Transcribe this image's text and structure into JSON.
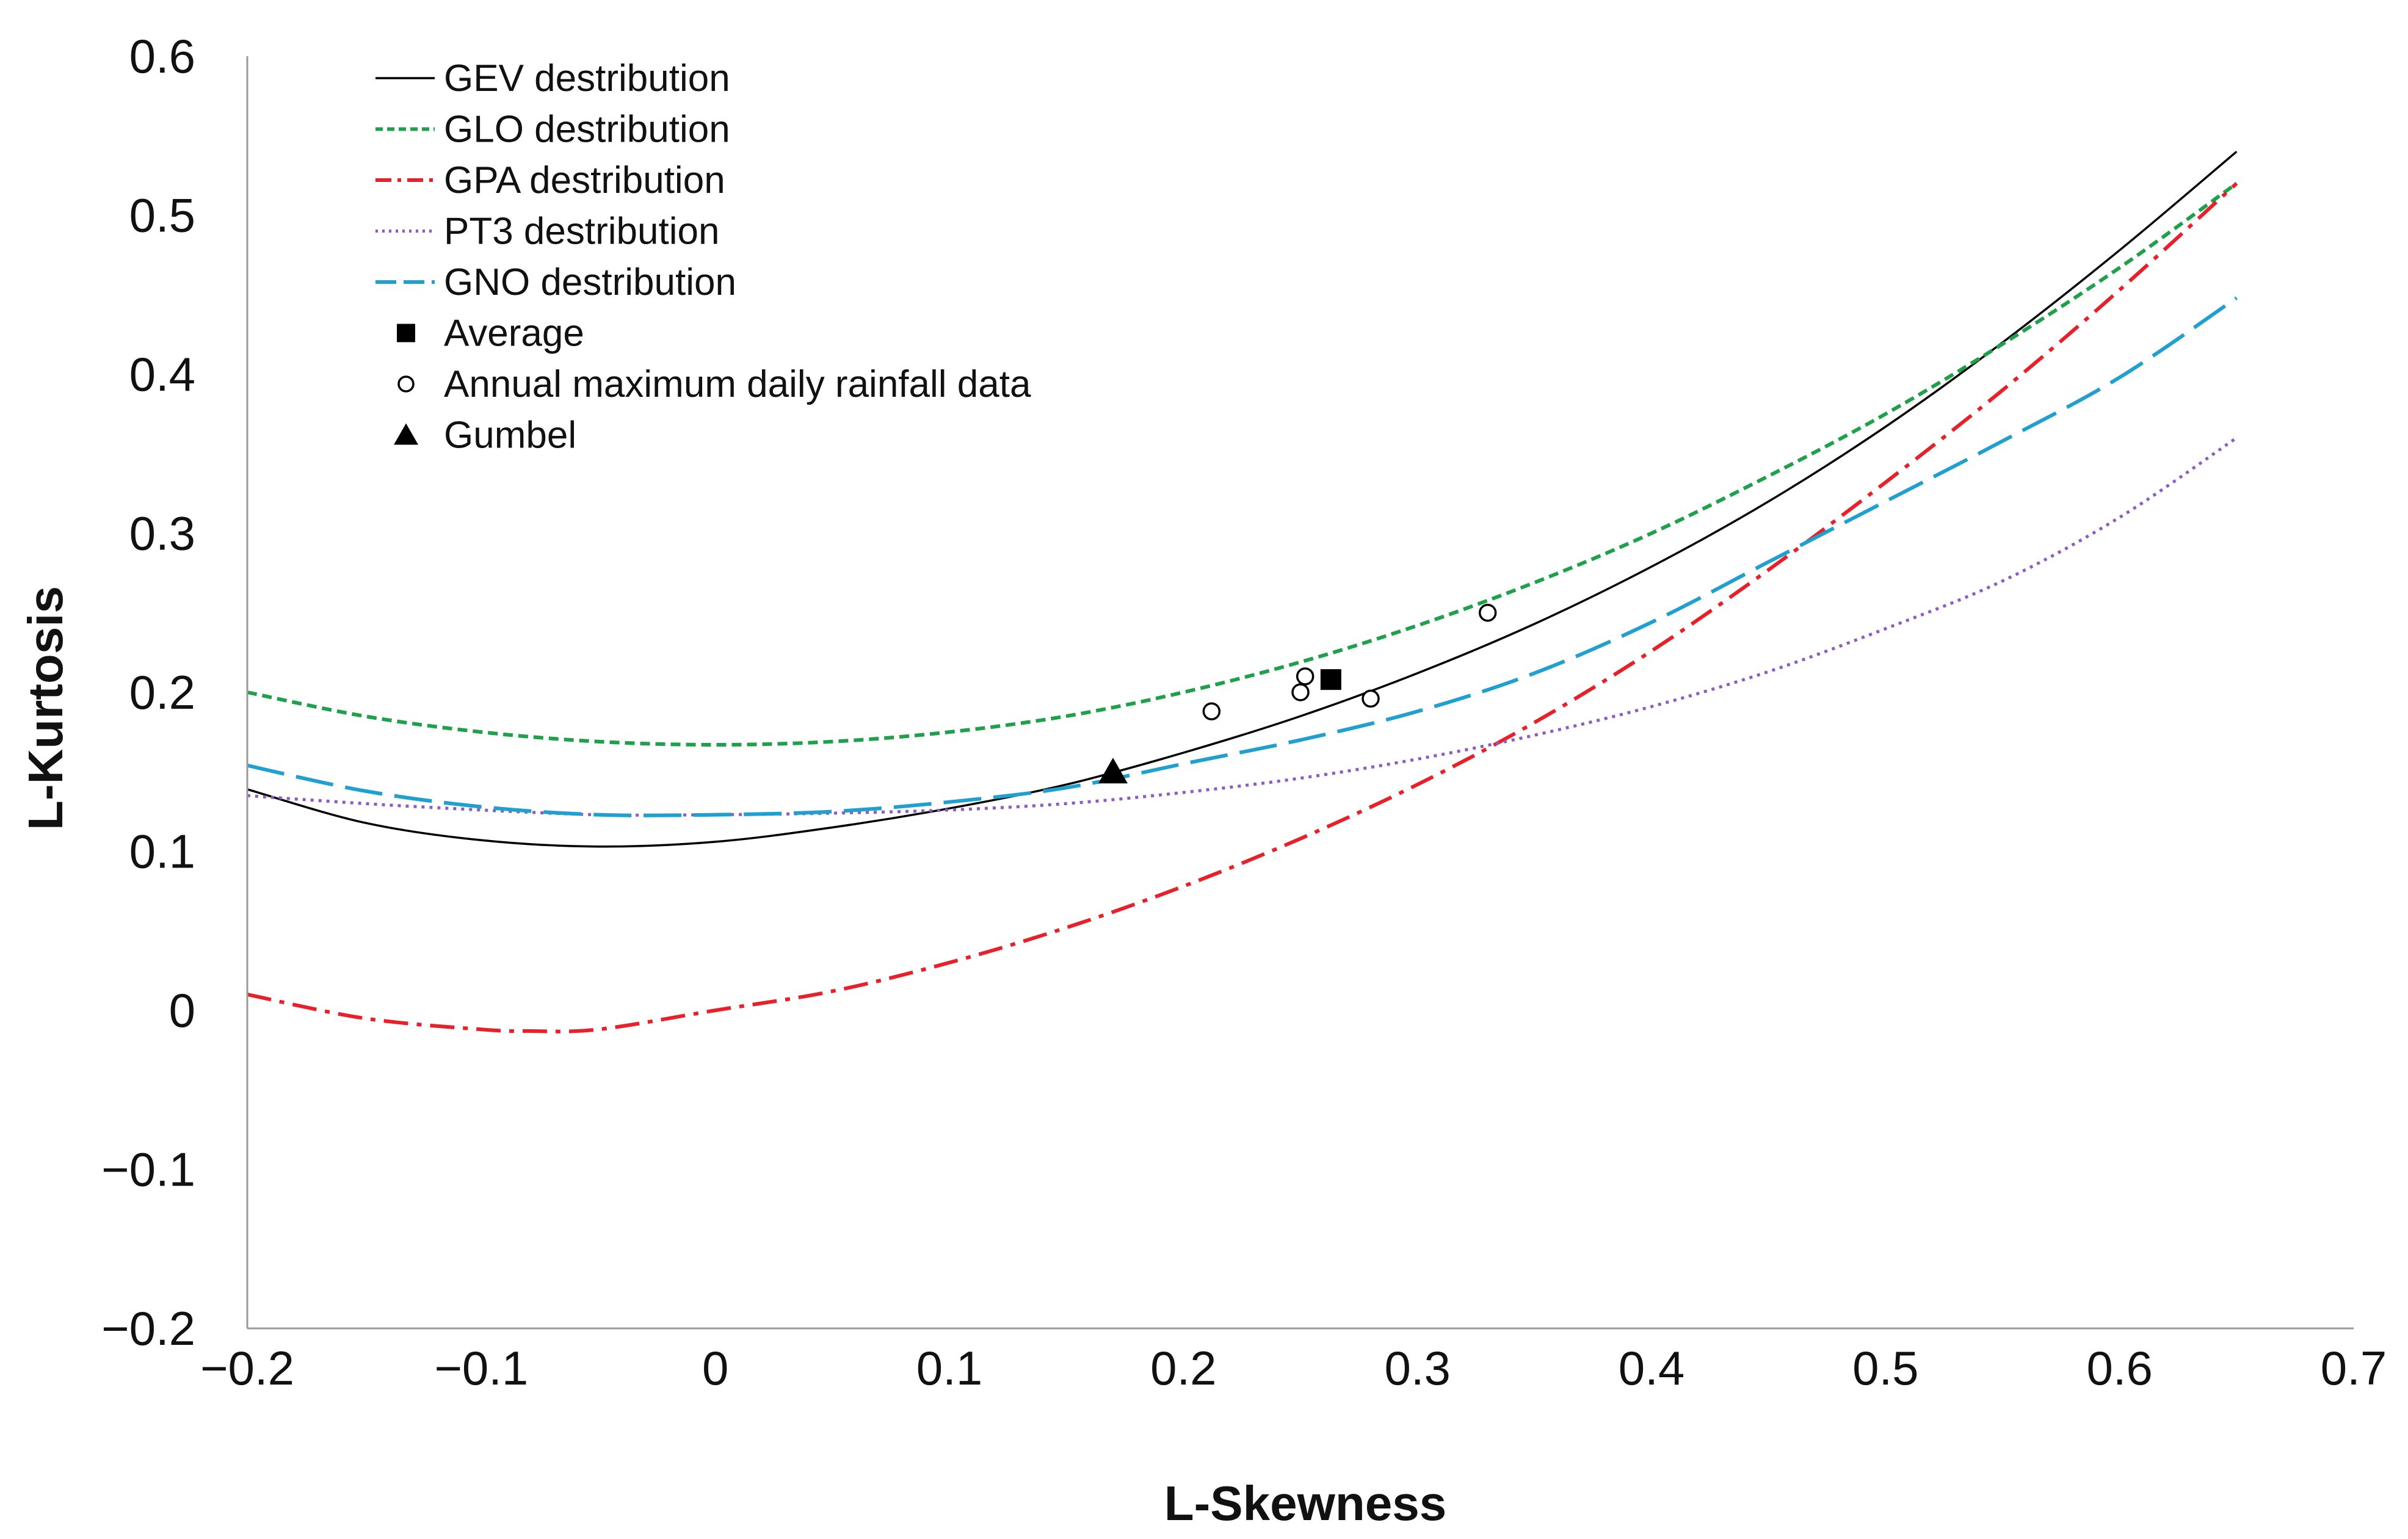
{
  "chart_data": {
    "type": "line",
    "title": "",
    "xlabel": "L-Skewness",
    "ylabel": "L-Kurtosis",
    "xlim": [
      -0.2,
      0.7
    ],
    "ylim": [
      -0.2,
      0.6
    ],
    "grid": false,
    "legend_position": "top-left",
    "x_ticks": [
      -0.2,
      -0.1,
      0,
      0.1,
      0.2,
      0.3,
      0.4,
      0.5,
      0.6,
      0.7
    ],
    "x_tick_labels": [
      "−0.2",
      "−0.1",
      "0",
      "0.1",
      "0.2",
      "0.3",
      "0.4",
      "0.5",
      "0.6",
      "0.7"
    ],
    "y_ticks": [
      0.6,
      0.5,
      0.4,
      0.3,
      0.2,
      0.1,
      0,
      -0.1,
      -0.2
    ],
    "y_tick_labels": [
      "0.6",
      "0.5",
      "0.4",
      "0.3",
      "0.2",
      "0.1",
      "0",
      "−0.1",
      "−0.2"
    ],
    "series": [
      {
        "name": "GEV destribution",
        "color": "#000000",
        "dash": "solid",
        "x": [
          -0.2,
          -0.15,
          -0.1,
          -0.05,
          0,
          0.05,
          0.1,
          0.15,
          0.2,
          0.25,
          0.3,
          0.35,
          0.4,
          0.45,
          0.5,
          0.55,
          0.6,
          0.65
        ],
        "y": [
          0.139,
          0.118,
          0.107,
          0.103,
          0.106,
          0.115,
          0.127,
          0.142,
          0.162,
          0.185,
          0.212,
          0.243,
          0.279,
          0.32,
          0.367,
          0.42,
          0.478,
          0.54
        ]
      },
      {
        "name": "GLO destribution",
        "color": "#1fa04a",
        "dash": "short-dash",
        "x": [
          -0.2,
          -0.15,
          -0.1,
          -0.05,
          0,
          0.05,
          0.1,
          0.15,
          0.2,
          0.25,
          0.3,
          0.35,
          0.4,
          0.45,
          0.5,
          0.55,
          0.6,
          0.65
        ],
        "y": [
          0.2,
          0.185,
          0.175,
          0.169,
          0.167,
          0.169,
          0.175,
          0.185,
          0.2,
          0.219,
          0.242,
          0.269,
          0.3,
          0.336,
          0.375,
          0.419,
          0.467,
          0.52
        ]
      },
      {
        "name": "GPA destribution",
        "color": "#e8202a",
        "dash": "dash-dot",
        "x": [
          -0.2,
          -0.15,
          -0.1,
          -0.08,
          -0.05,
          0,
          0.05,
          0.1,
          0.15,
          0.2,
          0.25,
          0.3,
          0.35,
          0.4,
          0.45,
          0.5,
          0.55,
          0.6,
          0.65
        ],
        "y": [
          0.01,
          -0.005,
          -0.012,
          -0.013,
          -0.012,
          0.0,
          0.012,
          0.03,
          0.052,
          0.078,
          0.108,
          0.142,
          0.181,
          0.226,
          0.277,
          0.332,
          0.39,
          0.453,
          0.52
        ]
      },
      {
        "name": "PT3 destribution",
        "color": "#8b5cc4",
        "dash": "dotted",
        "x": [
          -0.2,
          -0.15,
          -0.1,
          -0.05,
          0,
          0.05,
          0.1,
          0.15,
          0.2,
          0.25,
          0.3,
          0.35,
          0.4,
          0.45,
          0.5,
          0.55,
          0.6,
          0.65
        ],
        "y": [
          0.135,
          0.13,
          0.126,
          0.123,
          0.123,
          0.124,
          0.126,
          0.13,
          0.137,
          0.146,
          0.158,
          0.173,
          0.191,
          0.213,
          0.24,
          0.27,
          0.31,
          0.36
        ]
      },
      {
        "name": "GNO destribution",
        "color": "#1fa0d0",
        "dash": "long-dash",
        "x": [
          -0.2,
          -0.15,
          -0.1,
          -0.05,
          0,
          0.05,
          0.1,
          0.15,
          0.2,
          0.25,
          0.3,
          0.35,
          0.4,
          0.45,
          0.5,
          0.55,
          0.6,
          0.65
        ],
        "y": [
          0.154,
          0.138,
          0.128,
          0.123,
          0.123,
          0.125,
          0.131,
          0.14,
          0.155,
          0.17,
          0.188,
          0.212,
          0.244,
          0.282,
          0.32,
          0.358,
          0.398,
          0.448
        ]
      }
    ],
    "points": {
      "average": {
        "name": "Average",
        "x": 0.263,
        "y": 0.208
      },
      "annual_max": {
        "name": "Annual maximum daily rainfall data",
        "x": [
          0.212,
          0.25,
          0.252,
          0.28,
          0.33
        ],
        "y": [
          0.188,
          0.2,
          0.21,
          0.196,
          0.25
        ]
      },
      "gumbel": {
        "name": "Gumbel",
        "x": 0.1699,
        "y": 0.1504
      }
    }
  }
}
